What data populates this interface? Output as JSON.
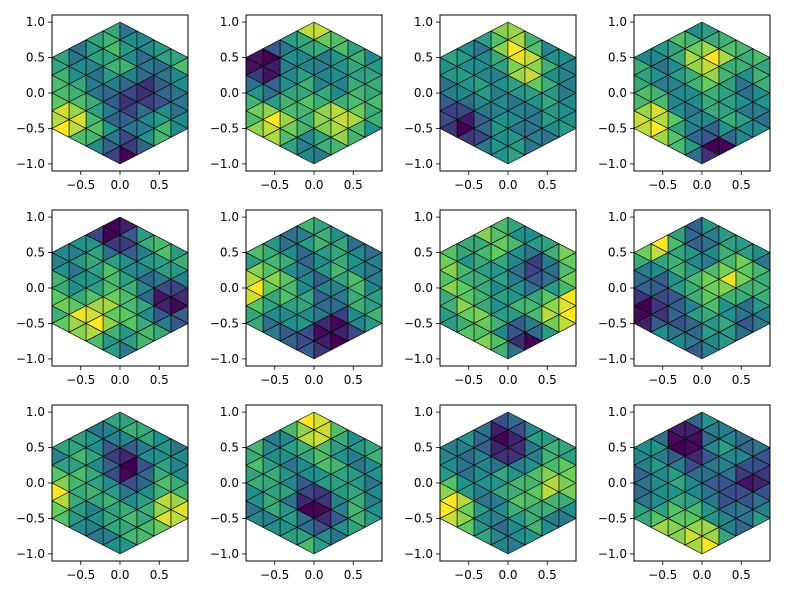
{
  "figure": {
    "layout": "3x4 grid of small-multiple panels",
    "colormap": "viridis",
    "colormap_stops": [
      "#440154",
      "#3b528b",
      "#21918c",
      "#5ec962",
      "#fde725"
    ],
    "mesh_edge_color": "#000000"
  },
  "chart_data": {
    "type": "heatmap",
    "plot_kind": "triangulated hexagonal mesh (tripcolor)",
    "title": "",
    "xlabel": "",
    "ylabel": "",
    "xlim": [
      -0.866,
      0.866
    ],
    "ylim": [
      -1.1,
      1.1
    ],
    "xticks": [
      -0.5,
      0.0,
      0.5
    ],
    "xtick_labels": [
      "−0.5",
      "0.0",
      "0.5"
    ],
    "yticks": [
      -1.0,
      -0.5,
      0.0,
      0.5,
      1.0
    ],
    "ytick_labels": [
      "−1.0",
      "−0.5",
      "0.0",
      "0.5",
      "1.0"
    ],
    "grid": false,
    "legend": "none",
    "hexagon": {
      "radius": 1.0,
      "vertices_per_side": 5,
      "vertex_angles_deg": [
        90,
        150,
        210,
        270,
        330,
        30
      ],
      "triangle_count": 96
    },
    "panels": [
      {
        "row": 0,
        "col": 0,
        "low_areas": [
          [
            0.25,
            -0.05
          ],
          [
            0.0,
            -0.95
          ]
        ],
        "high_areas": [
          [
            -0.75,
            -0.45
          ]
        ]
      },
      {
        "row": 0,
        "col": 1,
        "low_areas": [
          [
            -0.6,
            0.45
          ]
        ],
        "high_areas": [
          [
            0.0,
            0.95
          ],
          [
            -0.45,
            -0.4
          ],
          [
            0.4,
            -0.35
          ]
        ]
      },
      {
        "row": 0,
        "col": 2,
        "low_areas": [
          [
            -0.55,
            -0.45
          ]
        ],
        "high_areas": [
          [
            0.25,
            0.35
          ],
          [
            0.05,
            0.75
          ]
        ]
      },
      {
        "row": 0,
        "col": 3,
        "low_areas": [
          [
            0.25,
            -0.85
          ]
        ],
        "high_areas": [
          [
            -0.7,
            -0.45
          ],
          [
            0.15,
            0.5
          ]
        ]
      },
      {
        "row": 1,
        "col": 0,
        "low_areas": [
          [
            -0.1,
            0.8
          ],
          [
            0.7,
            -0.15
          ]
        ],
        "high_areas": [
          [
            -0.3,
            -0.4
          ]
        ]
      },
      {
        "row": 1,
        "col": 1,
        "low_areas": [
          [
            0.15,
            -0.7
          ]
        ],
        "high_areas": [
          [
            -0.8,
            0.0
          ]
        ]
      },
      {
        "row": 1,
        "col": 2,
        "low_areas": [
          [
            0.25,
            0.2
          ],
          [
            0.25,
            -0.75
          ]
        ],
        "high_areas": [
          [
            0.85,
            -0.3
          ]
        ]
      },
      {
        "row": 1,
        "col": 3,
        "low_areas": [
          [
            -0.8,
            -0.35
          ]
        ],
        "high_areas": [
          [
            -0.7,
            0.65
          ],
          [
            0.3,
            0.1
          ]
        ]
      },
      {
        "row": 2,
        "col": 0,
        "low_areas": [
          [
            0.1,
            0.25
          ]
        ],
        "high_areas": [
          [
            -0.8,
            -0.1
          ],
          [
            0.6,
            -0.45
          ]
        ]
      },
      {
        "row": 2,
        "col": 1,
        "low_areas": [
          [
            0.0,
            -0.35
          ]
        ],
        "high_areas": [
          [
            0.1,
            0.85
          ]
        ]
      },
      {
        "row": 2,
        "col": 2,
        "low_areas": [
          [
            -0.1,
            0.55
          ]
        ],
        "high_areas": [
          [
            -0.75,
            -0.35
          ],
          [
            0.5,
            -0.05
          ]
        ]
      },
      {
        "row": 2,
        "col": 3,
        "low_areas": [
          [
            0.6,
            0.0
          ],
          [
            -0.2,
            0.6
          ]
        ],
        "high_areas": [
          [
            -0.45,
            -0.6
          ],
          [
            0.0,
            -0.85
          ]
        ]
      }
    ]
  }
}
